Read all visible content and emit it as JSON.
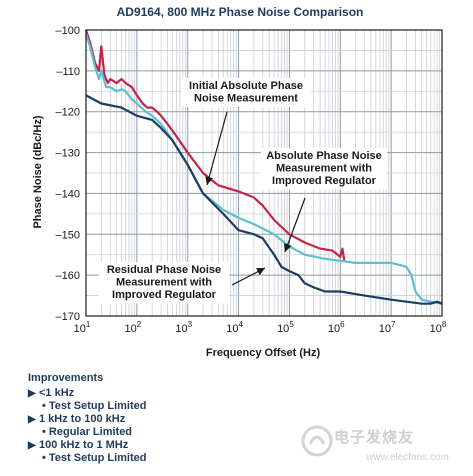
{
  "chart_data": {
    "type": "line",
    "title": "AD9164, 800 MHz Phase Noise Comparison",
    "xlabel": "Frequency Offset (Hz)",
    "ylabel": "Phase Noise (dBc/Hz)",
    "xscale": "log",
    "xlim": [
      10,
      100000000
    ],
    "ylim": [
      -170,
      -100
    ],
    "x_ticks": [
      {
        "base": "10",
        "exp": "1"
      },
      {
        "base": "10",
        "exp": "2"
      },
      {
        "base": "10",
        "exp": "3"
      },
      {
        "base": "10",
        "exp": "4"
      },
      {
        "base": "10",
        "exp": "5"
      },
      {
        "base": "10",
        "exp": "6"
      },
      {
        "base": "10",
        "exp": "7"
      },
      {
        "base": "10",
        "exp": "8"
      }
    ],
    "y_ticks": [
      "–100",
      "–110",
      "–120",
      "–130",
      "–140",
      "–150",
      "–160",
      "–170"
    ],
    "grid": true,
    "series": [
      {
        "name": "Initial Absolute Phase Noise Measurement",
        "color": "#c0254a",
        "points": [
          [
            10,
            -100
          ],
          [
            12,
            -103
          ],
          [
            15,
            -108
          ],
          [
            18,
            -110
          ],
          [
            20,
            -104
          ],
          [
            23,
            -111
          ],
          [
            27,
            -113
          ],
          [
            30,
            -112
          ],
          [
            40,
            -113
          ],
          [
            50,
            -112
          ],
          [
            60,
            -113
          ],
          [
            80,
            -114
          ],
          [
            100,
            -116
          ],
          [
            130,
            -118
          ],
          [
            160,
            -119
          ],
          [
            200,
            -119
          ],
          [
            250,
            -120
          ],
          [
            300,
            -121
          ],
          [
            400,
            -123
          ],
          [
            600,
            -126
          ],
          [
            1000,
            -130
          ],
          [
            2000,
            -135
          ],
          [
            4000,
            -138
          ],
          [
            10000,
            -139.5
          ],
          [
            20000,
            -141
          ],
          [
            30000,
            -143
          ],
          [
            50000,
            -146.5
          ],
          [
            100000,
            -150
          ],
          [
            200000,
            -152
          ],
          [
            400000,
            -153.5
          ],
          [
            700000,
            -154
          ],
          [
            1000000,
            -155.5
          ],
          [
            1100000,
            -153.5
          ],
          [
            1200000,
            -156.5
          ]
        ]
      },
      {
        "name": "Absolute Phase Noise Measurement with Improved Regulator",
        "color": "#5bbfd0",
        "points": [
          [
            10,
            -101
          ],
          [
            12,
            -104
          ],
          [
            15,
            -109
          ],
          [
            18,
            -112
          ],
          [
            20,
            -110
          ],
          [
            25,
            -114
          ],
          [
            30,
            -114
          ],
          [
            40,
            -115
          ],
          [
            50,
            -114.5
          ],
          [
            60,
            -115
          ],
          [
            80,
            -117
          ],
          [
            100,
            -118
          ],
          [
            150,
            -120
          ],
          [
            200,
            -121
          ],
          [
            300,
            -123
          ],
          [
            500,
            -127
          ],
          [
            1000,
            -133
          ],
          [
            2000,
            -140
          ],
          [
            5000,
            -144
          ],
          [
            10000,
            -146
          ],
          [
            20000,
            -147.5
          ],
          [
            50000,
            -150
          ],
          [
            100000,
            -153
          ],
          [
            200000,
            -155
          ],
          [
            500000,
            -156
          ],
          [
            1000000,
            -156.5
          ],
          [
            2000000,
            -157
          ],
          [
            5000000,
            -157
          ],
          [
            10000000,
            -157
          ],
          [
            15000000,
            -157.5
          ],
          [
            20000000,
            -158
          ],
          [
            25000000,
            -160
          ],
          [
            30000000,
            -164
          ],
          [
            40000000,
            -166
          ],
          [
            60000000,
            -166.5
          ],
          [
            100000000,
            -167
          ]
        ]
      },
      {
        "name": "Residual Phase Noise Measurement with Improved Regulator",
        "color": "#1b3d63",
        "points": [
          [
            10,
            -116
          ],
          [
            20,
            -118
          ],
          [
            50,
            -119
          ],
          [
            100,
            -121
          ],
          [
            200,
            -122
          ],
          [
            300,
            -124
          ],
          [
            500,
            -127
          ],
          [
            1000,
            -133
          ],
          [
            2000,
            -140
          ],
          [
            5000,
            -145
          ],
          [
            10000,
            -149
          ],
          [
            20000,
            -150
          ],
          [
            30000,
            -151
          ],
          [
            50000,
            -155
          ],
          [
            70000,
            -158
          ],
          [
            100000,
            -159
          ],
          [
            150000,
            -160
          ],
          [
            200000,
            -162
          ],
          [
            300000,
            -163
          ],
          [
            500000,
            -164
          ],
          [
            1000000,
            -164
          ],
          [
            3000000,
            -165
          ],
          [
            10000000,
            -166
          ],
          [
            20000000,
            -166.5
          ],
          [
            40000000,
            -167
          ],
          [
            60000000,
            -167
          ],
          [
            80000000,
            -166.5
          ],
          [
            100000000,
            -167
          ]
        ]
      }
    ],
    "annotations": [
      {
        "lines": [
          "Initial Absolute Phase",
          "Noise Measurement"
        ]
      },
      {
        "lines": [
          "Absolute Phase Noise",
          "Measurement with",
          "Improved Regulator"
        ]
      },
      {
        "lines": [
          "Residual Phase Noise",
          "Measurement with",
          "Improved Regulator"
        ]
      }
    ]
  },
  "notes": {
    "header": "Improvements",
    "items": [
      {
        "range": "<1 kHz",
        "detail": "• Test Setup Limited"
      },
      {
        "range": "1 kHz to 100 kHz",
        "detail": "• Regular Limited"
      },
      {
        "range": "100 kHz to 1 MHz",
        "detail": "• Test Setup Limited"
      }
    ]
  },
  "watermark": {
    "text": "电子发烧友",
    "url": "www.elecfans.com"
  }
}
